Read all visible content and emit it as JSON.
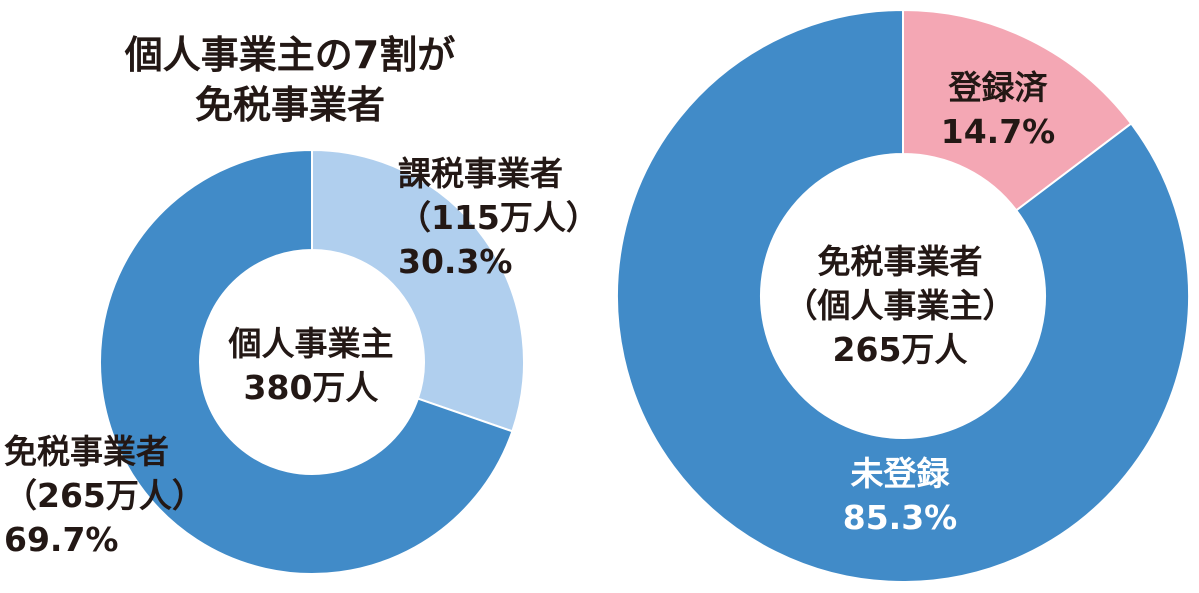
{
  "title": [
    "個人事業主の7割が",
    "免税事業者"
  ],
  "chart_data": [
    {
      "type": "pie",
      "center_label": [
        "個人事業主",
        "380万人"
      ],
      "slices": [
        {
          "label": [
            "課税事業者",
            "（115万人）",
            "30.3%"
          ],
          "value": 30.3,
          "color": "#b0cfee"
        },
        {
          "label": [
            "免税事業者",
            "（265万人）",
            "69.7%"
          ],
          "value": 69.7,
          "color": "#418bc8"
        }
      ]
    },
    {
      "type": "pie",
      "center_label": [
        "免税事業者",
        "（個人事業主）",
        "265万人"
      ],
      "slices": [
        {
          "label": [
            "登録済",
            "14.7%"
          ],
          "value": 14.7,
          "color": "#f4a7b4"
        },
        {
          "label": [
            "未登録",
            "85.3%"
          ],
          "value": 85.3,
          "color": "#418bc8"
        }
      ]
    }
  ]
}
